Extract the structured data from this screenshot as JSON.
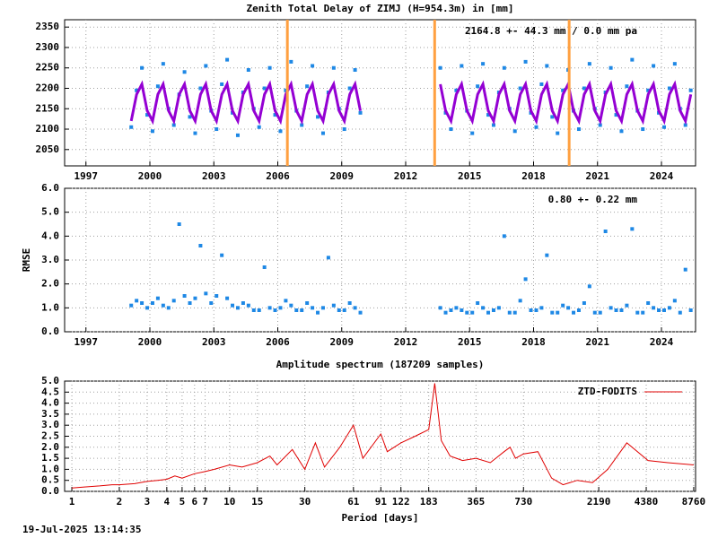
{
  "footer": "19-Jul-2025 13:14:35",
  "chart_data": [
    {
      "type": "scatter",
      "title": "Zenith Total Delay of ZIMJ (H=954.3m) in [mm]",
      "annotation": "2164.8 +-  44.3 mm /  0.0 mm pa",
      "xlim": [
        1996,
        2025.6
      ],
      "xticks": [
        1997,
        2000,
        2003,
        2006,
        2009,
        2012,
        2015,
        2018,
        2021,
        2024
      ],
      "ylim": [
        2010,
        2368
      ],
      "yticks": [
        2050,
        2100,
        2150,
        2200,
        2250,
        2300,
        2350
      ],
      "grid": true,
      "vlines": [
        2006.45,
        2013.36,
        2019.67
      ],
      "vline_color": "#ffa040",
      "x": [
        1999.125,
        1999.375,
        1999.625,
        1999.875,
        2000.125,
        2000.375,
        2000.625,
        2000.875,
        2001.125,
        2001.375,
        2001.625,
        2001.875,
        2002.125,
        2002.375,
        2002.625,
        2002.875,
        2003.125,
        2003.375,
        2003.625,
        2003.875,
        2004.125,
        2004.375,
        2004.625,
        2004.875,
        2005.125,
        2005.375,
        2005.625,
        2005.875,
        2006.125,
        2006.375,
        2006.625,
        2006.875,
        2007.125,
        2007.375,
        2007.625,
        2007.875,
        2008.125,
        2008.375,
        2008.625,
        2008.875,
        2009.125,
        2009.375,
        2009.625,
        2009.875,
        2011.5,
        2013.625,
        2013.875,
        2014.125,
        2014.375,
        2014.625,
        2014.875,
        2015.125,
        2015.375,
        2015.625,
        2015.875,
        2016.125,
        2016.375,
        2016.625,
        2016.875,
        2017.125,
        2017.375,
        2017.625,
        2017.875,
        2018.125,
        2018.375,
        2018.625,
        2018.875,
        2019.125,
        2019.375,
        2019.625,
        2019.875,
        2020.125,
        2020.375,
        2020.625,
        2020.875,
        2021.125,
        2021.375,
        2021.625,
        2021.875,
        2022.125,
        2022.375,
        2022.625,
        2022.875,
        2023.125,
        2023.375,
        2023.625,
        2023.875,
        2024.125,
        2024.375,
        2024.625,
        2024.875,
        2025.125,
        2025.375
      ],
      "series": [
        {
          "type": "scatter",
          "color": "#1e88e5",
          "values": [
            2105,
            2195,
            2250,
            2135,
            2095,
            2205,
            2260,
            2150,
            2110,
            2185,
            2240,
            2130,
            2090,
            2200,
            2255,
            2145,
            2100,
            2210,
            2270,
            2140,
            2085,
            2190,
            2245,
            2150,
            2105,
            2200,
            2250,
            2135,
            2095,
            2195,
            2265,
            2145,
            2110,
            2205,
            2255,
            2130,
            2090,
            2190,
            2250,
            2150,
            2100,
            2200,
            2245,
            2140,
            null,
            2250,
            2140,
            2100,
            2195,
            2255,
            2145,
            2090,
            2205,
            2260,
            2135,
            2110,
            2190,
            2250,
            2150,
            2095,
            2200,
            2265,
            2140,
            2105,
            2210,
            2255,
            2130,
            2090,
            2195,
            2245,
            2145,
            2100,
            2200,
            2260,
            2150,
            2110,
            2190,
            2250,
            2135,
            2095,
            2205,
            2270,
            2145,
            2100,
            2195,
            2255,
            2140,
            2105,
            2200,
            2260,
            2150,
            2110,
            2195
          ]
        },
        {
          "type": "line",
          "color": "#9400d3",
          "values": [
            2120,
            2185,
            2210,
            2145,
            2120,
            2185,
            2210,
            2145,
            2120,
            2185,
            2210,
            2145,
            2120,
            2185,
            2210,
            2145,
            2120,
            2185,
            2210,
            2145,
            2120,
            2185,
            2210,
            2145,
            2120,
            2185,
            2210,
            2145,
            2120,
            2185,
            2210,
            2145,
            2120,
            2185,
            2210,
            2145,
            2120,
            2185,
            2210,
            2145,
            2120,
            2185,
            2210,
            2145,
            null,
            2210,
            2145,
            2120,
            2185,
            2210,
            2145,
            2120,
            2185,
            2210,
            2145,
            2120,
            2185,
            2210,
            2145,
            2120,
            2185,
            2210,
            2145,
            2120,
            2185,
            2210,
            2145,
            2120,
            2185,
            2210,
            2145,
            2120,
            2185,
            2210,
            2145,
            2120,
            2185,
            2210,
            2145,
            2120,
            2185,
            2210,
            2145,
            2120,
            2185,
            2210,
            2145,
            2120,
            2185,
            2210,
            2145,
            2120,
            2185
          ]
        }
      ]
    },
    {
      "type": "scatter",
      "ylabel": "RMSE",
      "annotation": "0.80 +-  0.22 mm",
      "xlim": [
        1996,
        2025.6
      ],
      "xticks": [
        1997,
        2000,
        2003,
        2006,
        2009,
        2012,
        2015,
        2018,
        2021,
        2024
      ],
      "ylim": [
        0,
        6
      ],
      "yticks": [
        {
          "value": 0,
          "label": "0.0"
        },
        {
          "value": 1,
          "label": "1.0"
        },
        {
          "value": 2,
          "label": "2.0"
        },
        {
          "value": 3,
          "label": "3.0"
        },
        {
          "value": 4,
          "label": "4.0"
        },
        {
          "value": 5,
          "label": "5.0"
        },
        {
          "value": 6,
          "label": "6.0"
        }
      ],
      "grid": true,
      "x": [
        1999.125,
        1999.375,
        1999.625,
        1999.875,
        2000.125,
        2000.375,
        2000.625,
        2000.875,
        2001.125,
        2001.375,
        2001.625,
        2001.875,
        2002.125,
        2002.375,
        2002.625,
        2002.875,
        2003.125,
        2003.375,
        2003.625,
        2003.875,
        2004.125,
        2004.375,
        2004.625,
        2004.875,
        2005.125,
        2005.375,
        2005.625,
        2005.875,
        2006.125,
        2006.375,
        2006.625,
        2006.875,
        2007.125,
        2007.375,
        2007.625,
        2007.875,
        2008.125,
        2008.375,
        2008.625,
        2008.875,
        2009.125,
        2009.375,
        2009.625,
        2009.875,
        2011.5,
        2013.625,
        2013.875,
        2014.125,
        2014.375,
        2014.625,
        2014.875,
        2015.125,
        2015.375,
        2015.625,
        2015.875,
        2016.125,
        2016.375,
        2016.625,
        2016.875,
        2017.125,
        2017.375,
        2017.625,
        2017.875,
        2018.125,
        2018.375,
        2018.625,
        2018.875,
        2019.125,
        2019.375,
        2019.625,
        2019.875,
        2020.125,
        2020.375,
        2020.625,
        2020.875,
        2021.125,
        2021.375,
        2021.625,
        2021.875,
        2022.125,
        2022.375,
        2022.625,
        2022.875,
        2023.125,
        2023.375,
        2023.625,
        2023.875,
        2024.125,
        2024.375,
        2024.625,
        2024.875,
        2025.125,
        2025.375
      ],
      "series": [
        {
          "type": "scatter",
          "color": "#1e88e5",
          "values": [
            1.1,
            1.3,
            1.2,
            1.0,
            1.2,
            1.4,
            1.1,
            1.0,
            1.3,
            4.5,
            1.5,
            1.2,
            1.4,
            3.6,
            1.6,
            1.2,
            1.5,
            3.2,
            1.4,
            1.1,
            1.0,
            1.2,
            1.1,
            0.9,
            0.9,
            2.7,
            1.0,
            0.9,
            1.0,
            1.3,
            1.1,
            0.9,
            0.9,
            1.2,
            1.0,
            0.8,
            1.0,
            3.1,
            1.1,
            0.9,
            0.9,
            1.2,
            1.0,
            0.8,
            null,
            1.0,
            0.8,
            0.9,
            1.0,
            0.9,
            0.8,
            0.8,
            1.2,
            1.0,
            0.8,
            0.9,
            1.0,
            4.0,
            0.8,
            0.8,
            1.3,
            2.2,
            0.9,
            0.9,
            1.0,
            3.2,
            0.8,
            0.8,
            1.1,
            1.0,
            0.8,
            0.9,
            1.2,
            1.9,
            0.8,
            0.8,
            4.2,
            1.0,
            0.9,
            0.9,
            1.1,
            4.3,
            0.8,
            0.8,
            1.2,
            1.0,
            0.9,
            0.9,
            1.0,
            1.3,
            0.8,
            2.6,
            0.9
          ]
        }
      ]
    },
    {
      "type": "line",
      "title": "Amplitude spectrum (187209 samples)",
      "xlabel": "Period [days]",
      "xlog": true,
      "xlim": [
        0.9,
        9000
      ],
      "xticks": [
        1,
        2,
        3,
        4,
        5,
        6,
        7,
        10,
        15,
        30,
        61,
        91,
        122,
        183,
        365,
        730,
        2190,
        4380,
        8760
      ],
      "ylim": [
        0,
        5
      ],
      "yticks": [
        {
          "value": 0,
          "label": "0.0"
        },
        {
          "value": 0.5,
          "label": "0.5"
        },
        {
          "value": 1,
          "label": "1.0"
        },
        {
          "value": 1.5,
          "label": "1.5"
        },
        {
          "value": 2,
          "label": "2.0"
        },
        {
          "value": 2.5,
          "label": "2.5"
        },
        {
          "value": 3,
          "label": "3.0"
        },
        {
          "value": 3.5,
          "label": "3.5"
        },
        {
          "value": 4,
          "label": "4.0"
        },
        {
          "value": 4.5,
          "label": "4.5"
        },
        {
          "value": 5,
          "label": "5.0"
        }
      ],
      "grid": true,
      "legend": "top-right",
      "x": [
        1,
        1.2,
        1.5,
        1.8,
        2,
        2.5,
        3,
        3.5,
        4,
        4.5,
        5,
        6,
        7,
        8,
        10,
        12,
        15,
        18,
        20,
        25,
        30,
        35,
        40,
        50,
        61,
        70,
        91,
        100,
        122,
        150,
        183,
        200,
        220,
        250,
        300,
        365,
        450,
        550,
        600,
        650,
        730,
        900,
        1100,
        1300,
        1600,
        2000,
        2500,
        3300,
        4500,
        6000,
        8760
      ],
      "series": [
        {
          "type": "line",
          "name": "ZTD-FODITS",
          "color": "#e00000",
          "values": [
            0.15,
            0.2,
            0.25,
            0.3,
            0.3,
            0.35,
            0.45,
            0.5,
            0.55,
            0.7,
            0.6,
            0.8,
            0.9,
            1.0,
            1.2,
            1.1,
            1.3,
            1.6,
            1.2,
            1.9,
            1.0,
            2.2,
            1.1,
            2.0,
            3.0,
            1.5,
            2.6,
            1.8,
            2.2,
            2.5,
            2.8,
            4.9,
            2.3,
            1.6,
            1.4,
            1.5,
            1.3,
            1.8,
            2.0,
            1.5,
            1.7,
            1.8,
            0.6,
            0.3,
            0.5,
            0.4,
            1.0,
            2.2,
            1.4,
            1.3,
            1.2
          ]
        }
      ]
    }
  ]
}
